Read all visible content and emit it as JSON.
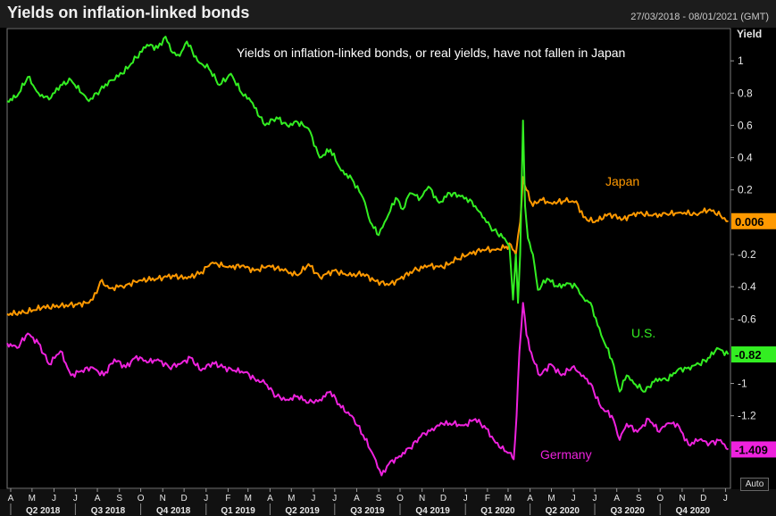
{
  "header": {
    "title": "Yields on inflation-linked bonds",
    "date_range": "27/03/2018 - 08/01/2021 (GMT)",
    "auto_label": "Auto"
  },
  "chart_data": {
    "type": "line",
    "annotation": "Yields on inflation-linked bonds, or real yields, have not fallen in Japan",
    "ylabel": "Yield",
    "ylim": [
      -1.65,
      1.2
    ],
    "yticks": [
      1,
      0.8,
      0.6,
      0.4,
      0.2,
      -0.2,
      -0.4,
      -0.6,
      -1,
      -1.2
    ],
    "ytick_labels": [
      "1",
      "0.8",
      "0.6",
      "0.4",
      "0.2",
      "-0.2",
      "-0.4",
      "-0.6",
      "-1",
      "-1.2"
    ],
    "xlim": [
      "2018-03-27",
      "2021-01-08"
    ],
    "month_ticks": [
      {
        "d": "2018-04-01",
        "l": "A"
      },
      {
        "d": "2018-05-01",
        "l": "M"
      },
      {
        "d": "2018-06-01",
        "l": "J"
      },
      {
        "d": "2018-07-01",
        "l": "J"
      },
      {
        "d": "2018-08-01",
        "l": "A"
      },
      {
        "d": "2018-09-01",
        "l": "S"
      },
      {
        "d": "2018-10-01",
        "l": "O"
      },
      {
        "d": "2018-11-01",
        "l": "N"
      },
      {
        "d": "2018-12-01",
        "l": "D"
      },
      {
        "d": "2019-01-01",
        "l": "J"
      },
      {
        "d": "2019-02-01",
        "l": "F"
      },
      {
        "d": "2019-03-01",
        "l": "M"
      },
      {
        "d": "2019-04-01",
        "l": "A"
      },
      {
        "d": "2019-05-01",
        "l": "M"
      },
      {
        "d": "2019-06-01",
        "l": "J"
      },
      {
        "d": "2019-07-01",
        "l": "J"
      },
      {
        "d": "2019-08-01",
        "l": "A"
      },
      {
        "d": "2019-09-01",
        "l": "S"
      },
      {
        "d": "2019-10-01",
        "l": "O"
      },
      {
        "d": "2019-11-01",
        "l": "N"
      },
      {
        "d": "2019-12-01",
        "l": "D"
      },
      {
        "d": "2020-01-01",
        "l": "J"
      },
      {
        "d": "2020-02-01",
        "l": "F"
      },
      {
        "d": "2020-03-01",
        "l": "M"
      },
      {
        "d": "2020-04-01",
        "l": "A"
      },
      {
        "d": "2020-05-01",
        "l": "M"
      },
      {
        "d": "2020-06-01",
        "l": "J"
      },
      {
        "d": "2020-07-01",
        "l": "J"
      },
      {
        "d": "2020-08-01",
        "l": "A"
      },
      {
        "d": "2020-09-01",
        "l": "S"
      },
      {
        "d": "2020-10-01",
        "l": "O"
      },
      {
        "d": "2020-11-01",
        "l": "N"
      },
      {
        "d": "2020-12-01",
        "l": "D"
      },
      {
        "d": "2021-01-01",
        "l": "J"
      }
    ],
    "quarter_ticks": [
      {
        "start": "2018-04-01",
        "end": "2018-07-01",
        "l": "Q2 2018"
      },
      {
        "start": "2018-07-01",
        "end": "2018-10-01",
        "l": "Q3 2018"
      },
      {
        "start": "2018-10-01",
        "end": "2019-01-01",
        "l": "Q4 2018"
      },
      {
        "start": "2019-01-01",
        "end": "2019-04-01",
        "l": "Q1 2019"
      },
      {
        "start": "2019-04-01",
        "end": "2019-07-01",
        "l": "Q2 2019"
      },
      {
        "start": "2019-07-01",
        "end": "2019-10-01",
        "l": "Q3 2019"
      },
      {
        "start": "2019-10-01",
        "end": "2020-01-01",
        "l": "Q4 2019"
      },
      {
        "start": "2020-01-01",
        "end": "2020-04-01",
        "l": "Q1 2020"
      },
      {
        "start": "2020-04-01",
        "end": "2020-07-01",
        "l": "Q2 2020"
      },
      {
        "start": "2020-07-01",
        "end": "2020-10-01",
        "l": "Q3 2020"
      },
      {
        "start": "2020-10-01",
        "end": "2021-01-01",
        "l": "Q4 2020"
      }
    ],
    "series": [
      {
        "name": "Japan",
        "color": "#ff9900",
        "last_label": "0.006",
        "points": [
          [
            "2018-03-27",
            -0.57
          ],
          [
            "2018-04-20",
            -0.56
          ],
          [
            "2018-05-15",
            -0.53
          ],
          [
            "2018-06-10",
            -0.52
          ],
          [
            "2018-07-01",
            -0.51
          ],
          [
            "2018-07-20",
            -0.5
          ],
          [
            "2018-07-31",
            -0.44
          ],
          [
            "2018-08-05",
            -0.37
          ],
          [
            "2018-08-20",
            -0.41
          ],
          [
            "2018-09-10",
            -0.39
          ],
          [
            "2018-10-01",
            -0.36
          ],
          [
            "2018-10-25",
            -0.35
          ],
          [
            "2018-11-15",
            -0.33
          ],
          [
            "2018-12-05",
            -0.35
          ],
          [
            "2018-12-25",
            -0.31
          ],
          [
            "2019-01-10",
            -0.25
          ],
          [
            "2019-02-01",
            -0.28
          ],
          [
            "2019-02-20",
            -0.27
          ],
          [
            "2019-03-10",
            -0.3
          ],
          [
            "2019-03-31",
            -0.27
          ],
          [
            "2019-04-20",
            -0.3
          ],
          [
            "2019-05-10",
            -0.33
          ],
          [
            "2019-05-25",
            -0.26
          ],
          [
            "2019-06-10",
            -0.34
          ],
          [
            "2019-06-30",
            -0.3
          ],
          [
            "2019-07-20",
            -0.33
          ],
          [
            "2019-08-10",
            -0.32
          ],
          [
            "2019-08-25",
            -0.36
          ],
          [
            "2019-09-15",
            -0.39
          ],
          [
            "2019-10-01",
            -0.35
          ],
          [
            "2019-10-20",
            -0.3
          ],
          [
            "2019-11-10",
            -0.27
          ],
          [
            "2019-11-30",
            -0.28
          ],
          [
            "2019-12-20",
            -0.23
          ],
          [
            "2020-01-05",
            -0.2
          ],
          [
            "2020-01-25",
            -0.17
          ],
          [
            "2020-02-10",
            -0.17
          ],
          [
            "2020-02-25",
            -0.16
          ],
          [
            "2020-03-05",
            -0.14
          ],
          [
            "2020-03-12",
            -0.2
          ],
          [
            "2020-03-18",
            0.0
          ],
          [
            "2020-03-22",
            0.28
          ],
          [
            "2020-03-27",
            0.2
          ],
          [
            "2020-04-05",
            0.1
          ],
          [
            "2020-04-15",
            0.14
          ],
          [
            "2020-04-30",
            0.12
          ],
          [
            "2020-05-20",
            0.13
          ],
          [
            "2020-06-05",
            0.13
          ],
          [
            "2020-06-15",
            0.03
          ],
          [
            "2020-07-01",
            0.0
          ],
          [
            "2020-07-20",
            0.05
          ],
          [
            "2020-08-10",
            0.02
          ],
          [
            "2020-08-30",
            0.06
          ],
          [
            "2020-09-20",
            0.04
          ],
          [
            "2020-10-10",
            0.05
          ],
          [
            "2020-10-30",
            0.06
          ],
          [
            "2020-11-20",
            0.05
          ],
          [
            "2020-12-10",
            0.08
          ],
          [
            "2020-12-25",
            0.04
          ],
          [
            "2021-01-05",
            0.006
          ]
        ]
      },
      {
        "name": "U.S.",
        "color": "#33ee22",
        "last_label": "-0.82",
        "points": [
          [
            "2018-03-27",
            0.75
          ],
          [
            "2018-04-10",
            0.78
          ],
          [
            "2018-04-25",
            0.9
          ],
          [
            "2018-05-10",
            0.8
          ],
          [
            "2018-05-25",
            0.76
          ],
          [
            "2018-06-10",
            0.85
          ],
          [
            "2018-06-25",
            0.88
          ],
          [
            "2018-07-10",
            0.8
          ],
          [
            "2018-07-20",
            0.75
          ],
          [
            "2018-08-05",
            0.82
          ],
          [
            "2018-08-20",
            0.88
          ],
          [
            "2018-09-05",
            0.92
          ],
          [
            "2018-09-25",
            1.02
          ],
          [
            "2018-10-10",
            1.1
          ],
          [
            "2018-10-25",
            1.08
          ],
          [
            "2018-11-05",
            1.15
          ],
          [
            "2018-11-15",
            1.05
          ],
          [
            "2018-11-25",
            1.03
          ],
          [
            "2018-12-05",
            1.12
          ],
          [
            "2018-12-20",
            1.0
          ],
          [
            "2019-01-05",
            0.95
          ],
          [
            "2019-01-20",
            0.85
          ],
          [
            "2019-02-05",
            0.92
          ],
          [
            "2019-02-20",
            0.8
          ],
          [
            "2019-03-05",
            0.75
          ],
          [
            "2019-03-25",
            0.6
          ],
          [
            "2019-04-10",
            0.65
          ],
          [
            "2019-04-25",
            0.6
          ],
          [
            "2019-05-10",
            0.62
          ],
          [
            "2019-05-25",
            0.58
          ],
          [
            "2019-06-10",
            0.4
          ],
          [
            "2019-06-25",
            0.45
          ],
          [
            "2019-07-10",
            0.32
          ],
          [
            "2019-07-25",
            0.27
          ],
          [
            "2019-08-10",
            0.15
          ],
          [
            "2019-08-20",
            0.0
          ],
          [
            "2019-09-01",
            -0.08
          ],
          [
            "2019-09-12",
            0.02
          ],
          [
            "2019-09-25",
            0.15
          ],
          [
            "2019-10-05",
            0.08
          ],
          [
            "2019-10-15",
            0.18
          ],
          [
            "2019-10-30",
            0.15
          ],
          [
            "2019-11-10",
            0.22
          ],
          [
            "2019-11-25",
            0.12
          ],
          [
            "2019-12-10",
            0.18
          ],
          [
            "2019-12-25",
            0.16
          ],
          [
            "2020-01-10",
            0.13
          ],
          [
            "2020-01-25",
            0.03
          ],
          [
            "2020-02-10",
            -0.05
          ],
          [
            "2020-02-25",
            -0.1
          ],
          [
            "2020-03-03",
            -0.15
          ],
          [
            "2020-03-08",
            -0.48
          ],
          [
            "2020-03-12",
            -0.2
          ],
          [
            "2020-03-15",
            -0.5
          ],
          [
            "2020-03-18",
            -0.2
          ],
          [
            "2020-03-22",
            0.63
          ],
          [
            "2020-03-25",
            0.1
          ],
          [
            "2020-03-29",
            -0.1
          ],
          [
            "2020-04-05",
            -0.2
          ],
          [
            "2020-04-12",
            -0.42
          ],
          [
            "2020-04-25",
            -0.35
          ],
          [
            "2020-05-10",
            -0.4
          ],
          [
            "2020-05-25",
            -0.38
          ],
          [
            "2020-06-05",
            -0.4
          ],
          [
            "2020-06-15",
            -0.47
          ],
          [
            "2020-06-25",
            -0.5
          ],
          [
            "2020-07-10",
            -0.7
          ],
          [
            "2020-07-25",
            -0.85
          ],
          [
            "2020-08-05",
            -1.05
          ],
          [
            "2020-08-15",
            -0.95
          ],
          [
            "2020-08-25",
            -1.0
          ],
          [
            "2020-09-10",
            -1.05
          ],
          [
            "2020-09-25",
            -0.97
          ],
          [
            "2020-10-10",
            -0.98
          ],
          [
            "2020-10-25",
            -0.92
          ],
          [
            "2020-11-10",
            -0.9
          ],
          [
            "2020-11-25",
            -0.88
          ],
          [
            "2020-12-10",
            -0.84
          ],
          [
            "2020-12-20",
            -0.78
          ],
          [
            "2021-01-05",
            -0.82
          ]
        ]
      },
      {
        "name": "Germany",
        "color": "#ee22dd",
        "last_label": "-1.409",
        "points": [
          [
            "2018-03-27",
            -0.75
          ],
          [
            "2018-04-10",
            -0.78
          ],
          [
            "2018-04-25",
            -0.69
          ],
          [
            "2018-05-10",
            -0.75
          ],
          [
            "2018-05-25",
            -0.88
          ],
          [
            "2018-06-10",
            -0.8
          ],
          [
            "2018-06-25",
            -0.95
          ],
          [
            "2018-07-10",
            -0.92
          ],
          [
            "2018-07-25",
            -0.9
          ],
          [
            "2018-08-10",
            -0.95
          ],
          [
            "2018-08-25",
            -0.85
          ],
          [
            "2018-09-10",
            -0.9
          ],
          [
            "2018-09-25",
            -0.83
          ],
          [
            "2018-10-10",
            -0.87
          ],
          [
            "2018-10-25",
            -0.85
          ],
          [
            "2018-11-10",
            -0.9
          ],
          [
            "2018-11-25",
            -0.88
          ],
          [
            "2018-12-10",
            -0.84
          ],
          [
            "2018-12-25",
            -0.92
          ],
          [
            "2019-01-10",
            -0.87
          ],
          [
            "2019-01-25",
            -0.9
          ],
          [
            "2019-02-10",
            -0.92
          ],
          [
            "2019-02-25",
            -0.93
          ],
          [
            "2019-03-10",
            -0.97
          ],
          [
            "2019-03-25",
            -1.0
          ],
          [
            "2019-04-10",
            -1.08
          ],
          [
            "2019-04-25",
            -1.1
          ],
          [
            "2019-05-10",
            -1.08
          ],
          [
            "2019-05-25",
            -1.12
          ],
          [
            "2019-06-10",
            -1.1
          ],
          [
            "2019-06-25",
            -1.05
          ],
          [
            "2019-07-10",
            -1.15
          ],
          [
            "2019-07-25",
            -1.2
          ],
          [
            "2019-08-10",
            -1.32
          ],
          [
            "2019-08-25",
            -1.45
          ],
          [
            "2019-09-05",
            -1.57
          ],
          [
            "2019-09-15",
            -1.5
          ],
          [
            "2019-09-30",
            -1.45
          ],
          [
            "2019-10-15",
            -1.4
          ],
          [
            "2019-10-30",
            -1.33
          ],
          [
            "2019-11-15",
            -1.28
          ],
          [
            "2019-11-30",
            -1.25
          ],
          [
            "2019-12-15",
            -1.25
          ],
          [
            "2019-12-30",
            -1.26
          ],
          [
            "2020-01-15",
            -1.22
          ],
          [
            "2020-01-30",
            -1.28
          ],
          [
            "2020-02-10",
            -1.35
          ],
          [
            "2020-02-25",
            -1.42
          ],
          [
            "2020-03-05",
            -1.43
          ],
          [
            "2020-03-09",
            -1.47
          ],
          [
            "2020-03-13",
            -1.2
          ],
          [
            "2020-03-17",
            -0.8
          ],
          [
            "2020-03-22",
            -0.5
          ],
          [
            "2020-03-27",
            -0.7
          ],
          [
            "2020-04-05",
            -0.85
          ],
          [
            "2020-04-15",
            -0.95
          ],
          [
            "2020-04-30",
            -0.88
          ],
          [
            "2020-05-15",
            -0.95
          ],
          [
            "2020-05-30",
            -0.9
          ],
          [
            "2020-06-15",
            -0.95
          ],
          [
            "2020-06-25",
            -1.0
          ],
          [
            "2020-07-10",
            -1.15
          ],
          [
            "2020-07-25",
            -1.2
          ],
          [
            "2020-08-05",
            -1.35
          ],
          [
            "2020-08-15",
            -1.25
          ],
          [
            "2020-08-30",
            -1.3
          ],
          [
            "2020-09-15",
            -1.22
          ],
          [
            "2020-09-30",
            -1.3
          ],
          [
            "2020-10-10",
            -1.25
          ],
          [
            "2020-10-25",
            -1.25
          ],
          [
            "2020-11-10",
            -1.38
          ],
          [
            "2020-11-25",
            -1.35
          ],
          [
            "2020-12-10",
            -1.37
          ],
          [
            "2020-12-25",
            -1.35
          ],
          [
            "2021-01-05",
            -1.409
          ]
        ]
      }
    ]
  }
}
